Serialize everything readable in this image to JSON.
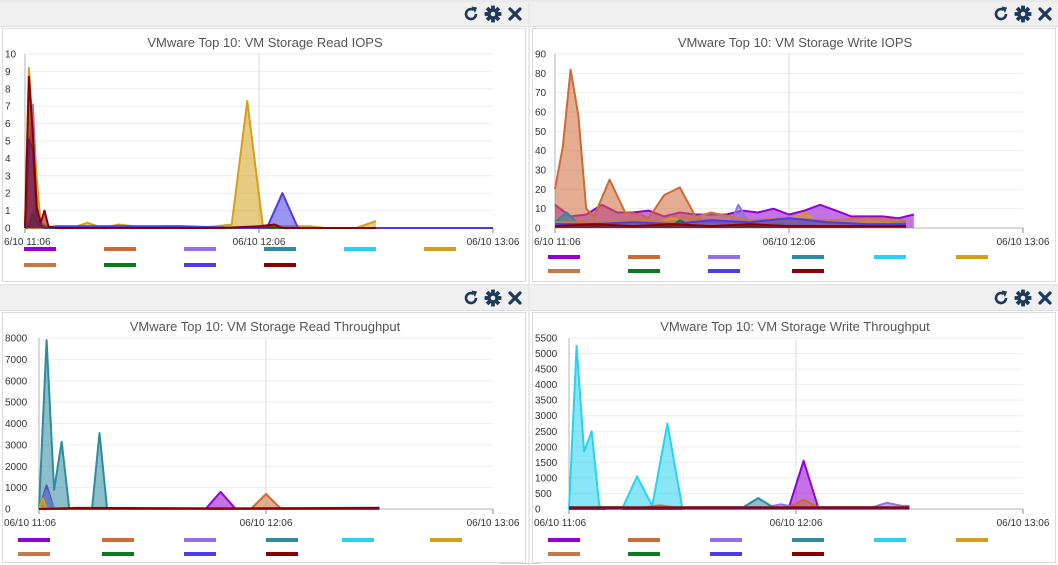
{
  "icons": {
    "refresh": "refresh-icon",
    "settings": "gear-icon",
    "close": "close-icon",
    "color": "#1d3a5c"
  },
  "panels": [
    {
      "id": "read-iops",
      "chart_data": {
        "type": "area",
        "title": "VMware Top 10: VM Storage Read IOPS",
        "xlabel": "",
        "ylabel": "",
        "x_tick_labels": [
          "6/10 11:06",
          "06/10 12:06",
          "06/10 13:06"
        ],
        "xlim": [
          0,
          120
        ],
        "ylim": [
          0,
          10
        ],
        "y_ticks": [
          0,
          1,
          2,
          3,
          4,
          5,
          6,
          7,
          8,
          9,
          10
        ],
        "grid": true,
        "series": [
          {
            "color": "#9400d3",
            "x": [
              0,
              3,
              5,
              60,
              120
            ],
            "values": [
              0,
              0.1,
              0,
              0,
              0
            ]
          },
          {
            "color": "#cd6a36",
            "x": [
              0,
              60,
              120
            ],
            "values": [
              0,
              0,
              0
            ]
          },
          {
            "color": "#9370ea",
            "x": [
              0,
              2,
              3,
              4,
              6,
              60,
              120
            ],
            "values": [
              0,
              7.1,
              2.5,
              0.2,
              0,
              0,
              0
            ]
          },
          {
            "color": "#2e8ba0",
            "x": [
              0,
              3,
              4,
              60,
              120
            ],
            "values": [
              0,
              1.2,
              0,
              0,
              0
            ]
          },
          {
            "color": "#28d2f0",
            "x": [
              0,
              60,
              120
            ],
            "values": [
              0,
              0,
              0
            ]
          },
          {
            "color": "#d4a01b",
            "x": [
              0,
              1,
              2,
              4,
              6,
              12,
              16,
              20,
              24,
              28,
              32,
              36,
              40,
              44,
              49,
              53,
              57,
              61,
              65,
              69,
              73,
              77,
              81,
              85,
              90
            ],
            "values": [
              0,
              9.2,
              5.5,
              0.3,
              0,
              0,
              0.3,
              0,
              0.2,
              0.1,
              0,
              0.1,
              0.1,
              0,
              0.1,
              0.2,
              7.3,
              0.1,
              0.1,
              0.1,
              0.1,
              0,
              0,
              0,
              0.4
            ]
          },
          {
            "color": "#c87846",
            "x": [
              0,
              60,
              120
            ],
            "values": [
              0,
              0,
              0
            ]
          },
          {
            "color": "#0e7a1f",
            "x": [
              0,
              1,
              2,
              3,
              4,
              5,
              60,
              120
            ],
            "values": [
              0,
              0.1,
              0.8,
              0.3,
              0.1,
              0,
              0,
              0
            ]
          },
          {
            "color": "#4b3ce6",
            "x": [
              0,
              1,
              2,
              3,
              4,
              5,
              8,
              20,
              40,
              56,
              58,
              62,
              66,
              70,
              74,
              120
            ],
            "values": [
              0,
              5.1,
              4.5,
              0.5,
              0.2,
              0,
              0.1,
              0.1,
              0.1,
              0,
              0,
              0,
              2,
              0,
              0,
              0
            ]
          },
          {
            "color": "#8b0000",
            "x": [
              0,
              1,
              2,
              3,
              4,
              5,
              6,
              8,
              12,
              30,
              50,
              60,
              64,
              66,
              68,
              90
            ],
            "values": [
              0,
              8.7,
              5.5,
              1.2,
              0.3,
              1,
              0.1,
              0,
              0,
              0,
              0,
              0.1,
              0.2,
              0,
              0,
              0
            ]
          }
        ]
      }
    },
    {
      "id": "write-iops",
      "chart_data": {
        "type": "area",
        "title": "VMware Top 10: VM Storage Write IOPS",
        "xlabel": "",
        "ylabel": "",
        "x_tick_labels": [
          "6/10 11:06",
          "06/10 12:06",
          "06/10 13:06"
        ],
        "xlim": [
          0,
          120
        ],
        "ylim": [
          0,
          90
        ],
        "y_ticks": [
          0,
          10,
          20,
          30,
          40,
          50,
          60,
          70,
          80,
          90
        ],
        "grid": true,
        "series": [
          {
            "color": "#9400d3",
            "x": [
              0,
              4,
              8,
              12,
              16,
              20,
              24,
              28,
              32,
              36,
              40,
              44,
              48,
              52,
              56,
              60,
              64,
              68,
              72,
              76,
              80,
              84,
              88,
              92
            ],
            "values": [
              12,
              6,
              7,
              12,
              8,
              8,
              9,
              6,
              8,
              7,
              7,
              7,
              9,
              8,
              10,
              7,
              9,
              12,
              9,
              6,
              6,
              6,
              5,
              7
            ]
          },
          {
            "color": "#cd6a36",
            "x": [
              0,
              2,
              4,
              6,
              8,
              10,
              14,
              18,
              22,
              24,
              28,
              32,
              36,
              40,
              44,
              48,
              52,
              56,
              60,
              64,
              68,
              72,
              76,
              80,
              84,
              88
            ],
            "values": [
              20,
              42,
              82,
              58,
              10,
              6,
              25,
              8,
              7,
              5,
              17,
              21,
              6,
              2,
              2,
              2,
              2,
              2,
              2,
              2,
              2,
              2,
              2,
              2,
              2,
              2
            ]
          },
          {
            "color": "#9370ea",
            "x": [
              0,
              10,
              20,
              30,
              40,
              45,
              47,
              50,
              55,
              60,
              70,
              80,
              90
            ],
            "values": [
              2,
              3,
              2,
              4,
              3,
              2,
              12,
              2,
              2,
              2,
              2,
              2,
              2
            ]
          },
          {
            "color": "#2e8ba0",
            "x": [
              0,
              3,
              6,
              10,
              20,
              30,
              40,
              50,
              60,
              70,
              80,
              90
            ],
            "values": [
              3,
              8,
              2,
              3,
              2,
              3,
              2,
              3,
              2,
              3,
              2,
              3
            ]
          },
          {
            "color": "#28d2f0",
            "x": [
              0,
              30,
              60,
              90
            ],
            "values": [
              1,
              1,
              1,
              1
            ]
          },
          {
            "color": "#d4a01b",
            "x": [
              0,
              10,
              20,
              25,
              30,
              35,
              40,
              50,
              60,
              64,
              68,
              75,
              80,
              90
            ],
            "values": [
              2,
              2,
              3,
              2,
              5,
              3,
              2,
              2,
              4,
              8,
              2,
              2,
              3,
              2
            ]
          },
          {
            "color": "#c87846",
            "x": [
              0,
              10,
              20,
              30,
              35,
              40,
              50,
              60,
              70,
              80,
              90
            ],
            "values": [
              3,
              3,
              4,
              3,
              5,
              8,
              4,
              5,
              4,
              5,
              4
            ]
          },
          {
            "color": "#0e7a1f",
            "x": [
              0,
              20,
              30,
              32,
              35,
              60,
              90
            ],
            "values": [
              1,
              1,
              1,
              4,
              1,
              1,
              1
            ]
          },
          {
            "color": "#4b3ce6",
            "x": [
              0,
              10,
              20,
              30,
              40,
              50,
              60,
              70,
              80,
              90
            ],
            "values": [
              2,
              2,
              3,
              2,
              4,
              3,
              5,
              3,
              2,
              2
            ]
          },
          {
            "color": "#8b0000",
            "x": [
              0,
              10,
              20,
              30,
              40,
              50,
              60,
              70,
              80,
              90
            ],
            "values": [
              1,
              2,
              1,
              2,
              1,
              2,
              1,
              1,
              1,
              1
            ]
          }
        ]
      }
    },
    {
      "id": "read-throughput",
      "chart_data": {
        "type": "area",
        "title": "VMware Top 10: VM Storage Read Throughput",
        "xlabel": "",
        "ylabel": "",
        "x_tick_labels": [
          "06/10 11:06",
          "06/10 12:06",
          "06/10 13:06"
        ],
        "xlim": [
          0,
          120
        ],
        "ylim": [
          0,
          8000
        ],
        "y_ticks": [
          0,
          1000,
          2000,
          3000,
          4000,
          5000,
          6000,
          7000,
          8000
        ],
        "grid": true,
        "series": [
          {
            "color": "#9400d3",
            "x": [
              0,
              2,
              4,
              8,
              40,
              44,
              48,
              52,
              90
            ],
            "values": [
              0,
              1100,
              0,
              0,
              0,
              0,
              800,
              0,
              0
            ]
          },
          {
            "color": "#cd6a36",
            "x": [
              0,
              56,
              60,
              64,
              90
            ],
            "values": [
              0,
              0,
              700,
              0,
              0
            ]
          },
          {
            "color": "#9370ea",
            "x": [
              0,
              2,
              4,
              6,
              90
            ],
            "values": [
              0,
              900,
              0,
              0,
              0
            ]
          },
          {
            "color": "#2e8ba0",
            "x": [
              0,
              2,
              4,
              6,
              8,
              10,
              14,
              16,
              18,
              22,
              24,
              26,
              30,
              90
            ],
            "values": [
              0,
              7900,
              900,
              3150,
              0,
              0,
              0,
              3550,
              0,
              0,
              0,
              0,
              0,
              0
            ]
          },
          {
            "color": "#28d2f0",
            "x": [
              0,
              90
            ],
            "values": [
              0,
              0
            ]
          },
          {
            "color": "#d4a01b",
            "x": [
              0,
              1,
              2,
              3,
              90
            ],
            "values": [
              0,
              500,
              0,
              0,
              0
            ]
          },
          {
            "color": "#c87846",
            "x": [
              0,
              90
            ],
            "values": [
              0,
              0
            ]
          },
          {
            "color": "#0e7a1f",
            "x": [
              0,
              90
            ],
            "values": [
              0,
              0
            ]
          },
          {
            "color": "#4b3ce6",
            "x": [
              0,
              90
            ],
            "values": [
              0,
              0
            ]
          },
          {
            "color": "#8b0000",
            "x": [
              0,
              10,
              30,
              50,
              70,
              90
            ],
            "values": [
              0,
              50,
              40,
              30,
              40,
              60
            ]
          }
        ]
      }
    },
    {
      "id": "write-throughput",
      "chart_data": {
        "type": "area",
        "title": "VMware Top 10: VM Storage Write Throughput",
        "xlabel": "",
        "ylabel": "",
        "x_tick_labels": [
          "06/10 11:06",
          "06/10 12:06",
          "06/10 13:06"
        ],
        "xlim": [
          0,
          120
        ],
        "ylim": [
          0,
          5500
        ],
        "y_ticks": [
          0,
          500,
          1000,
          1500,
          2000,
          2500,
          3000,
          3500,
          4000,
          4500,
          5000,
          5500
        ],
        "grid": true,
        "series": [
          {
            "color": "#9400d3",
            "x": [
              0,
              50,
              58,
              62,
              66,
              72,
              90
            ],
            "values": [
              0,
              0,
              0,
              1550,
              0,
              0,
              0
            ]
          },
          {
            "color": "#cd6a36",
            "x": [
              0,
              58,
              62,
              66,
              90
            ],
            "values": [
              50,
              50,
              300,
              50,
              50
            ]
          },
          {
            "color": "#9370ea",
            "x": [
              0,
              52,
              56,
              60,
              80,
              84,
              88,
              90
            ],
            "values": [
              50,
              50,
              150,
              50,
              50,
              200,
              100,
              100
            ]
          },
          {
            "color": "#2e8ba0",
            "x": [
              0,
              46,
              50,
              54,
              90
            ],
            "values": [
              50,
              50,
              350,
              50,
              50
            ]
          },
          {
            "color": "#28d2f0",
            "x": [
              0,
              2,
              4,
              6,
              8,
              10,
              14,
              18,
              22,
              26,
              30,
              34,
              38,
              90
            ],
            "values": [
              0,
              5250,
              1850,
              2500,
              100,
              0,
              0,
              1050,
              100,
              2750,
              0,
              0,
              0,
              0
            ]
          },
          {
            "color": "#d4a01b",
            "x": [
              0,
              90
            ],
            "values": [
              30,
              30
            ]
          },
          {
            "color": "#c87846",
            "x": [
              0,
              20,
              24,
              28,
              90
            ],
            "values": [
              50,
              50,
              120,
              50,
              50
            ]
          },
          {
            "color": "#0e7a1f",
            "x": [
              0,
              90
            ],
            "values": [
              20,
              20
            ]
          },
          {
            "color": "#4b3ce6",
            "x": [
              0,
              90
            ],
            "values": [
              20,
              20
            ]
          },
          {
            "color": "#8b0000",
            "x": [
              0,
              30,
              60,
              90
            ],
            "values": [
              50,
              50,
              50,
              50
            ]
          }
        ]
      }
    }
  ]
}
